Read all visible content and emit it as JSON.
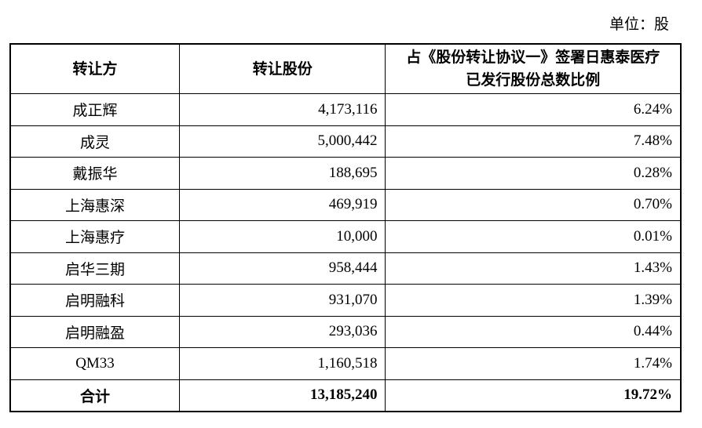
{
  "unit": "单位：股",
  "table": {
    "header": [
      "转让方",
      "转让股份",
      [
        "占《股份转让协议一》签署日惠泰医疗",
        "已发行股份总数比例"
      ]
    ],
    "rows": [
      [
        "成正辉",
        "4,173,116",
        "6.24%"
      ],
      [
        "成灵",
        "5,000,442",
        "7.48%"
      ],
      [
        "戴振华",
        "188,695",
        "0.28%"
      ],
      [
        "上海惠深",
        "469,919",
        "0.70%"
      ],
      [
        "上海惠疗",
        "10,000",
        "0.01%"
      ],
      [
        "启华三期",
        "958,444",
        "1.43%"
      ],
      [
        "启明融科",
        "931,070",
        "1.39%"
      ],
      [
        "启明融盈",
        "293,036",
        "0.44%"
      ],
      [
        "QM33",
        "1,160,518",
        "1.74%"
      ]
    ],
    "total": [
      "合计",
      "13,185,240",
      "19.72%"
    ]
  }
}
